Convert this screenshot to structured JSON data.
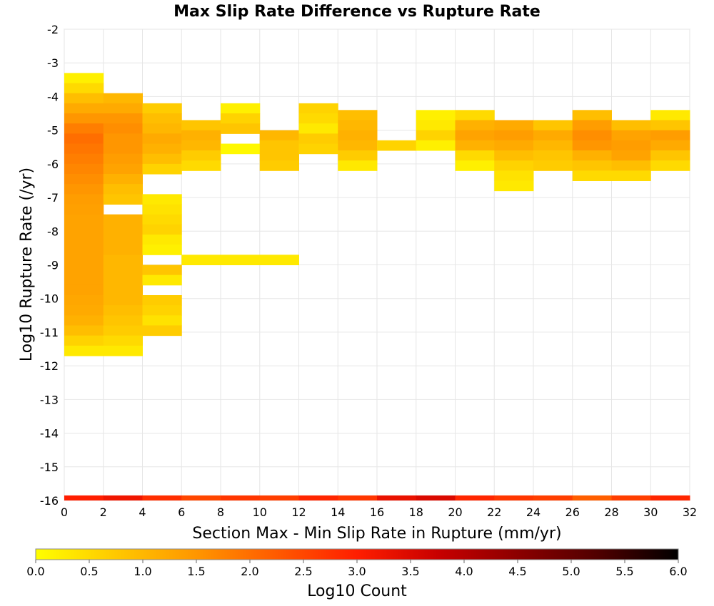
{
  "chart_data": {
    "type": "heatmap",
    "title": "Max Slip Rate Difference vs Rupture Rate",
    "xlabel": "Section Max - Min Slip Rate in Rupture (mm/yr)",
    "ylabel": "Log10 Rupture Rate (/yr)",
    "xlim": [
      0,
      32
    ],
    "ylim": [
      -16,
      -2
    ],
    "x_ticks": [
      "0",
      "2",
      "4",
      "6",
      "8",
      "10",
      "12",
      "14",
      "16",
      "18",
      "20",
      "22",
      "24",
      "26",
      "28",
      "30",
      "32"
    ],
    "y_ticks": [
      "-2",
      "-3",
      "-4",
      "-5",
      "-6",
      "-7",
      "-8",
      "-9",
      "-10",
      "-11",
      "-12",
      "-13",
      "-14",
      "-15",
      "-16"
    ],
    "grid": true,
    "bin_width_x": 2,
    "bin_height_y": 0.3,
    "colorbar": {
      "label": "Log10 Count",
      "range": [
        0,
        6
      ],
      "ticks": [
        "0.0",
        "0.5",
        "1.0",
        "1.5",
        "2.0",
        "2.5",
        "3.0",
        "3.5",
        "4.0",
        "4.5",
        "5.0",
        "5.5",
        "6.0"
      ],
      "colors": [
        "#ffff00",
        "#ffc800",
        "#ff9600",
        "#ff5a00",
        "#ff1e00",
        "#c80000",
        "#8c0000",
        "#500000",
        "#000000"
      ]
    },
    "columns": [
      {
        "x": 0,
        "y_top": -3.3,
        "values": [
          0.2,
          0.5,
          0.9,
          1.2,
          1.5,
          1.8,
          2.0,
          1.9,
          1.8,
          1.7,
          1.6,
          1.5,
          1.4,
          1.35,
          1.3,
          1.3,
          1.3,
          1.3,
          1.3,
          1.3,
          1.3,
          1.3,
          1.25,
          1.2,
          1.1,
          0.9,
          0.6,
          0.3
        ],
        "bottom": 3.0
      },
      {
        "x": 2,
        "y_top": -3.9,
        "values": [
          1.0,
          1.2,
          1.5,
          1.6,
          1.5,
          1.5,
          1.4,
          1.3,
          1.1,
          0.9,
          0.8,
          null,
          1.1,
          1.1,
          1.1,
          1.1,
          1.0,
          1.0,
          1.0,
          1.0,
          1.0,
          0.9,
          0.8,
          0.7,
          0.5,
          0.3
        ],
        "bottom": 3.2
      },
      {
        "x": 4,
        "y_top": -4.2,
        "values": [
          0.7,
          0.9,
          1.0,
          1.2,
          1.1,
          0.9,
          0.6,
          null,
          null,
          0.3,
          0.4,
          0.5,
          0.6,
          0.3,
          0.2,
          null,
          0.8,
          0.3,
          null,
          0.7,
          0.6,
          0.4,
          0.7
        ],
        "bottom": 2.8
      },
      {
        "x": 6,
        "y_top": -4.7,
        "values": [
          0.8,
          1.1,
          1.0,
          0.7,
          0.5
        ],
        "extra": [
          [
            -8.7,
            6,
            0.3
          ]
        ],
        "bottom": 2.5
      },
      {
        "x": 8,
        "y_top": -4.2,
        "values": [
          0.2,
          0.6,
          0.8,
          null,
          0.1
        ],
        "bottom": 2.7
      },
      {
        "x": 10,
        "y_top": -5.0,
        "values": [
          1.0,
          0.8,
          0.8,
          0.7
        ],
        "bottom": 2.6
      },
      {
        "x": 12,
        "y_top": -4.2,
        "values": [
          0.6,
          0.5,
          0.3,
          0.7,
          0.6
        ],
        "bottom": 2.9
      },
      {
        "x": 14,
        "y_top": -4.4,
        "values": [
          0.9,
          1.0,
          1.1,
          1.0,
          0.7,
          0.3
        ],
        "bottom": 2.7
      },
      {
        "x": 16,
        "y_top": -5.3,
        "values": [
          0.6
        ],
        "bottom": 3.3
      },
      {
        "x": 18,
        "y_top": -4.4,
        "values": [
          0.2,
          0.3,
          0.6,
          0.2
        ],
        "bottom": 3.5
      },
      {
        "x": 20,
        "y_top": -4.4,
        "values": [
          0.5,
          1.1,
          1.3,
          1.1,
          0.5,
          0.2
        ],
        "bottom": 2.9
      },
      {
        "x": 22,
        "y_top": -4.7,
        "values": [
          1.2,
          1.4,
          1.2,
          0.9,
          0.6,
          0.4,
          0.3
        ],
        "bottom": 2.7
      },
      {
        "x": 24,
        "y_top": -4.7,
        "values": [
          0.8,
          1.2,
          1.0,
          0.8,
          0.7
        ],
        "bottom": 2.6
      },
      {
        "x": 26,
        "y_top": -4.4,
        "values": [
          0.9,
          1.4,
          1.6,
          1.5,
          1.1,
          0.8,
          0.5
        ],
        "bottom": 2.2
      },
      {
        "x": 28,
        "y_top": -4.7,
        "values": [
          0.9,
          1.3,
          1.4,
          1.3,
          0.9,
          0.5
        ],
        "bottom": 2.6
      },
      {
        "x": 30,
        "y_top": -4.4,
        "values": [
          0.3,
          0.8,
          1.4,
          1.2,
          0.8,
          0.5
        ],
        "bottom": 2.9
      }
    ]
  }
}
